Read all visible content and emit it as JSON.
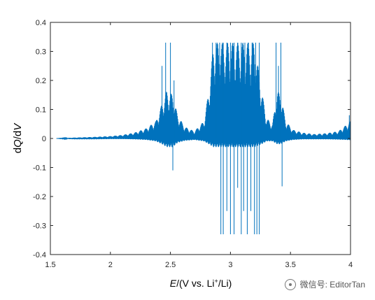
{
  "chart_data": {
    "type": "line",
    "title": "",
    "xlabel_italic": "E",
    "xlabel_rest": "/(V vs. Li",
    "xlabel_sup": "+",
    "xlabel_end": "/Li)",
    "ylabel_part1": "d",
    "ylabel_q": "Q",
    "ylabel_part2": "/d",
    "ylabel_v": "V",
    "xlim": [
      1.5,
      4.0
    ],
    "ylim": [
      -0.4,
      0.4
    ],
    "xticks": [
      "1.5",
      "2",
      "2.5",
      "3",
      "3.5",
      "4"
    ],
    "yticks": [
      "0.4",
      "0.3",
      "0.2",
      "0.1",
      "0",
      "-0.1",
      "-0.2",
      "-0.3",
      "-0.4"
    ],
    "grid": false,
    "color": "#0072BD",
    "series": [
      {
        "envelope": [
          [
            1.55,
            0.0,
            0.0
          ],
          [
            1.7,
            0.003,
            -0.003
          ],
          [
            1.85,
            0.005,
            -0.003
          ],
          [
            2.0,
            0.008,
            -0.002
          ],
          [
            2.1,
            0.012,
            -0.002
          ],
          [
            2.2,
            0.02,
            -0.003
          ],
          [
            2.3,
            0.035,
            -0.005
          ],
          [
            2.38,
            0.06,
            -0.01
          ],
          [
            2.43,
            0.12,
            -0.02
          ],
          [
            2.47,
            0.165,
            -0.03
          ],
          [
            2.52,
            0.15,
            -0.03
          ],
          [
            2.56,
            0.08,
            -0.015
          ],
          [
            2.62,
            0.04,
            -0.008
          ],
          [
            2.7,
            0.025,
            -0.005
          ],
          [
            2.78,
            0.06,
            -0.01
          ],
          [
            2.82,
            0.165,
            -0.02
          ],
          [
            2.86,
            0.33,
            -0.03
          ],
          [
            3.0,
            0.33,
            -0.03
          ],
          [
            3.1,
            0.33,
            -0.03
          ],
          [
            3.2,
            0.33,
            -0.03
          ],
          [
            3.26,
            0.165,
            -0.02
          ],
          [
            3.3,
            0.07,
            -0.01
          ],
          [
            3.35,
            0.05,
            -0.01
          ],
          [
            3.39,
            0.165,
            -0.02
          ],
          [
            3.42,
            0.15,
            -0.02
          ],
          [
            3.46,
            0.06,
            -0.01
          ],
          [
            3.52,
            0.03,
            -0.005
          ],
          [
            3.6,
            0.02,
            -0.003
          ],
          [
            3.7,
            0.015,
            -0.003
          ],
          [
            3.8,
            0.018,
            -0.003
          ],
          [
            3.9,
            0.025,
            -0.004
          ],
          [
            3.96,
            0.045,
            -0.005
          ],
          [
            4.0,
            0.06,
            -0.006
          ]
        ],
        "spikes": [
          [
            2.43,
            0.25
          ],
          [
            2.46,
            0.33
          ],
          [
            2.5,
            0.33
          ],
          [
            2.52,
            -0.11
          ],
          [
            2.53,
            0.2
          ],
          [
            2.85,
            0.33
          ],
          [
            2.88,
            0.33
          ],
          [
            2.91,
            0.33
          ],
          [
            2.94,
            0.33
          ],
          [
            2.97,
            0.33
          ],
          [
            3.0,
            0.33
          ],
          [
            3.03,
            0.33
          ],
          [
            3.06,
            0.33
          ],
          [
            3.09,
            0.33
          ],
          [
            3.12,
            0.33
          ],
          [
            3.15,
            0.33
          ],
          [
            3.18,
            0.33
          ],
          [
            3.21,
            0.33
          ],
          [
            3.24,
            0.33
          ],
          [
            2.92,
            -0.33
          ],
          [
            2.94,
            -0.33
          ],
          [
            2.97,
            -0.25
          ],
          [
            3.0,
            -0.33
          ],
          [
            3.03,
            -0.33
          ],
          [
            3.06,
            -0.17
          ],
          [
            3.09,
            -0.33
          ],
          [
            3.11,
            -0.25
          ],
          [
            3.14,
            -0.33
          ],
          [
            3.17,
            -0.25
          ],
          [
            3.2,
            -0.33
          ],
          [
            3.22,
            -0.33
          ],
          [
            3.24,
            -0.33
          ],
          [
            3.38,
            0.33
          ],
          [
            3.4,
            0.25
          ],
          [
            3.42,
            0.33
          ],
          [
            3.43,
            -0.165
          ],
          [
            3.99,
            0.08
          ]
        ]
      }
    ]
  },
  "watermark": {
    "text": "微信号: EditorTan",
    "icon": "wechat-icon"
  }
}
